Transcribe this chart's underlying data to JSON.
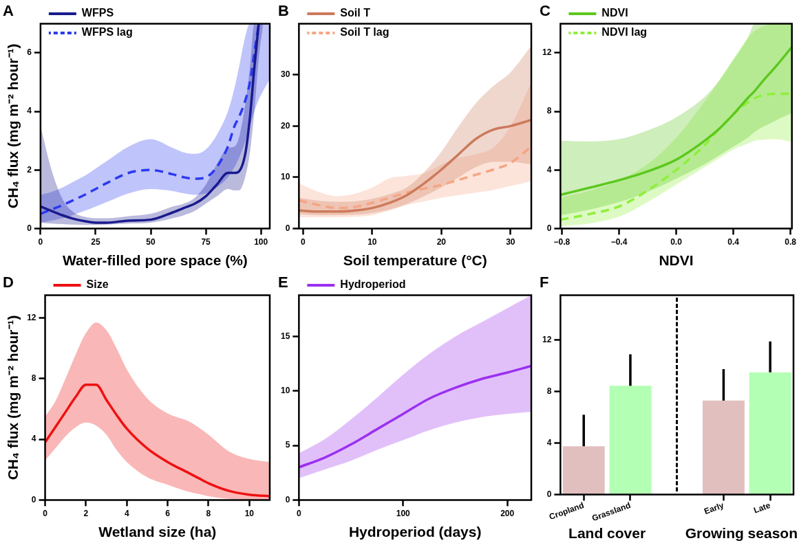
{
  "chart_data": [
    {
      "type": "line",
      "title": "A",
      "xlabel": "Water-filled pore space (%)",
      "ylabel": "CH₄ flux (mg m⁻² hour⁻¹)",
      "legend": "top left",
      "marker": "none",
      "xlim": [
        0,
        104
      ],
      "xticks": [
        0,
        25,
        50,
        75,
        100
      ],
      "ylim": [
        0,
        7
      ],
      "yticks": [
        0,
        2,
        4,
        6
      ],
      "x": [
        0,
        5,
        10,
        15,
        20,
        25,
        30,
        40,
        50,
        60,
        65,
        70,
        75,
        80,
        85,
        88,
        90,
        93,
        95,
        97,
        99,
        101,
        104
      ],
      "series": [
        {
          "name": "WFPS",
          "color": "#1a1a8f",
          "line_style": "solid",
          "values": [
            0.75,
            0.6,
            0.45,
            0.33,
            0.25,
            0.2,
            0.2,
            0.27,
            0.3,
            0.55,
            0.7,
            0.85,
            1.1,
            1.5,
            1.9,
            1.9,
            1.95,
            2.6,
            3.8,
            5.5,
            7.0,
            null,
            null
          ],
          "upper": [
            3.5,
            2.0,
            1.0,
            0.55,
            0.4,
            0.35,
            0.35,
            0.42,
            0.5,
            0.75,
            0.85,
            1.05,
            1.5,
            2.2,
            2.75,
            2.8,
            3.1,
            4.3,
            5.5,
            7.0,
            7.0,
            7.0,
            null
          ],
          "lower": [
            0.2,
            0.17,
            0.15,
            0.13,
            0.12,
            0.12,
            0.13,
            0.17,
            0.2,
            0.35,
            0.45,
            0.6,
            0.85,
            1.1,
            1.35,
            1.3,
            1.3,
            1.8,
            2.6,
            4.0,
            5.8,
            7.0,
            null
          ]
        },
        {
          "name": "WFPS lag",
          "color": "#2a3af0",
          "line_style": "dashed",
          "values": [
            0.5,
            0.65,
            0.8,
            0.97,
            1.15,
            1.35,
            1.55,
            1.9,
            2.0,
            1.85,
            1.75,
            1.7,
            1.75,
            2.1,
            2.8,
            3.5,
            3.8,
            4.4,
            5.0,
            6.0,
            7.0,
            null,
            null
          ],
          "upper": [
            1.15,
            1.25,
            1.4,
            1.6,
            1.8,
            2.05,
            2.3,
            2.8,
            3.05,
            2.75,
            2.6,
            2.55,
            2.7,
            3.2,
            4.0,
            4.8,
            5.5,
            6.6,
            7.0,
            7.0,
            7.0,
            7.0,
            7.0
          ],
          "lower": [
            0.2,
            0.27,
            0.35,
            0.47,
            0.6,
            0.75,
            0.9,
            1.2,
            1.35,
            1.28,
            1.2,
            1.15,
            1.2,
            1.4,
            1.75,
            2.1,
            2.4,
            3.0,
            3.5,
            4.0,
            4.4,
            4.7,
            5.1
          ]
        }
      ]
    },
    {
      "type": "line",
      "title": "B",
      "xlabel": "Soil temperature (°C)",
      "legend": "top left",
      "marker": "none",
      "xlim": [
        -0.6,
        33
      ],
      "xticks": [
        0,
        10,
        20,
        30
      ],
      "ylim": [
        0,
        40
      ],
      "yticks": [
        0,
        10,
        20,
        30
      ],
      "x": [
        -0.6,
        2.5,
        5,
        7.5,
        10,
        12.5,
        15,
        17.5,
        20,
        22.5,
        25,
        27.5,
        30,
        33
      ],
      "series": [
        {
          "name": "Soil T",
          "color": "#cc7a5c",
          "line_style": "solid",
          "values": [
            3.5,
            3.3,
            3.3,
            3.5,
            4.0,
            5.0,
            6.5,
            8.8,
            11.5,
            14.5,
            17.5,
            19.3,
            20.0,
            21.2
          ],
          "upper": [
            6.0,
            5.4,
            5.2,
            5.3,
            5.8,
            6.7,
            8.0,
            11.0,
            15.0,
            20.0,
            24.5,
            27.8,
            30.5,
            35.7
          ],
          "lower": [
            2.8,
            2.6,
            2.6,
            2.7,
            3.0,
            3.7,
            4.8,
            6.3,
            8.0,
            10.0,
            12.0,
            13.0,
            13.0,
            12.5
          ]
        },
        {
          "name": "Soil T lag",
          "color": "#f5a584",
          "line_style": "dashed",
          "values": [
            5.5,
            4.5,
            4.0,
            4.2,
            5.0,
            6.0,
            7.0,
            7.8,
            8.5,
            9.5,
            10.5,
            11.5,
            12.8,
            16.0
          ],
          "upper": [
            8.8,
            7.0,
            6.3,
            6.8,
            8.0,
            9.8,
            10.3,
            10.8,
            12.5,
            13.8,
            14.5,
            15.8,
            20.0,
            28.5
          ],
          "lower": [
            2.2,
            2.2,
            2.2,
            2.3,
            2.6,
            3.5,
            4.6,
            5.3,
            6.0,
            6.5,
            7.0,
            7.5,
            8.3,
            9.2
          ]
        }
      ]
    },
    {
      "type": "line",
      "title": "C",
      "xlabel": "NDVI",
      "legend": "top left",
      "marker": "none",
      "xlim": [
        -0.81,
        0.81
      ],
      "xticks": [
        {
          "value": -0.8,
          "label": "−0.8"
        },
        {
          "value": -0.4,
          "label": "−0.4"
        },
        {
          "value": 0,
          "label": "0.0"
        },
        {
          "value": 0.4,
          "label": "0.4"
        },
        {
          "value": 0.8,
          "label": "0.8"
        }
      ],
      "ylim": [
        0,
        14
      ],
      "yticks": [
        0,
        4,
        8,
        12
      ],
      "x": [
        -0.81,
        -0.6,
        -0.4,
        -0.2,
        0,
        0.2,
        0.3,
        0.4,
        0.5,
        0.55,
        0.6,
        0.7,
        0.81
      ],
      "series": [
        {
          "name": "NDVI",
          "color": "#5cc81e",
          "line_style": "solid",
          "values": [
            2.3,
            2.8,
            3.3,
            3.9,
            4.7,
            6.0,
            6.8,
            7.8,
            8.9,
            9.4,
            10.0,
            11.1,
            12.4
          ],
          "upper": [
            6.0,
            5.95,
            6.1,
            6.7,
            7.6,
            9.0,
            10.1,
            11.5,
            13.0,
            14.0,
            14.0,
            14.0,
            14.0
          ],
          "lower": [
            0.9,
            1.3,
            1.8,
            2.5,
            3.4,
            4.4,
            5.0,
            5.6,
            6.2,
            6.6,
            6.9,
            7.4,
            7.9
          ]
        },
        {
          "name": "NDVI lag",
          "color": "#8ef03a",
          "line_style": "dashed",
          "values": [
            0.6,
            1.0,
            1.5,
            2.6,
            4.0,
            5.7,
            6.8,
            7.8,
            8.6,
            8.9,
            9.1,
            9.2,
            9.2
          ],
          "upper": [
            2.1,
            2.6,
            3.3,
            4.4,
            6.2,
            8.7,
            10.1,
            11.6,
            13.0,
            13.5,
            13.8,
            14.0,
            14.0
          ],
          "lower": [
            0.15,
            0.35,
            0.8,
            1.8,
            3.0,
            4.2,
            4.8,
            5.4,
            5.8,
            6.0,
            6.05,
            6.1,
            5.9
          ]
        }
      ]
    },
    {
      "type": "line",
      "title": "D",
      "xlabel": "Wetland size (ha)",
      "ylabel": "CH₄ flux (mg m⁻² hour⁻¹)",
      "legend": "top left",
      "marker": "none",
      "xlim": [
        0,
        11
      ],
      "xticks": [
        0,
        2,
        4,
        6,
        8,
        10
      ],
      "ylim": [
        0,
        13.5
      ],
      "yticks": [
        0,
        4,
        8,
        12
      ],
      "x": [
        0,
        0.5,
        1,
        1.5,
        2,
        2.5,
        3,
        3.5,
        4,
        5,
        6,
        7,
        7.5,
        8,
        9,
        10,
        11
      ],
      "series": [
        {
          "name": "Size",
          "color": "#ee1111",
          "line_style": "solid",
          "values": [
            3.8,
            4.8,
            5.8,
            6.8,
            7.6,
            7.6,
            6.6,
            5.6,
            4.7,
            3.4,
            2.5,
            1.8,
            1.45,
            1.1,
            0.6,
            0.35,
            0.25
          ],
          "upper": [
            5.5,
            6.5,
            8.0,
            9.6,
            11.0,
            11.7,
            11.2,
            10.0,
            8.6,
            6.7,
            5.7,
            5.2,
            4.8,
            4.3,
            3.2,
            2.7,
            2.5
          ],
          "lower": [
            2.6,
            3.4,
            4.2,
            4.8,
            5.1,
            4.9,
            4.3,
            3.3,
            2.5,
            1.5,
            1.0,
            0.55,
            0.4,
            0.25,
            0.08,
            0.02,
            0.0
          ]
        }
      ]
    },
    {
      "type": "line",
      "title": "E",
      "xlabel": "Hydroperiod (days)",
      "legend": "top left",
      "marker": "none",
      "xlim": [
        0,
        223
      ],
      "xticks": [
        0,
        100,
        200
      ],
      "ylim": [
        0,
        18.8
      ],
      "yticks": [
        0,
        5,
        10,
        15
      ],
      "x": [
        0,
        25,
        50,
        75,
        100,
        125,
        150,
        175,
        200,
        223
      ],
      "series": [
        {
          "name": "Hydroperiod",
          "color": "#9b30f0",
          "line_style": "solid",
          "values": [
            3.0,
            3.9,
            5.1,
            6.5,
            7.9,
            9.3,
            10.3,
            11.1,
            11.7,
            12.3
          ],
          "upper": [
            4.3,
            5.6,
            7.4,
            9.4,
            11.5,
            13.4,
            15.0,
            16.3,
            17.6,
            18.8
          ],
          "lower": [
            2.0,
            2.8,
            3.6,
            4.6,
            5.5,
            6.4,
            7.1,
            7.6,
            7.9,
            8.1
          ]
        }
      ]
    },
    {
      "type": "bar",
      "title": "F",
      "categories": [
        "Cropland",
        "Grassland",
        null,
        "Early",
        "Late"
      ],
      "values": [
        3.75,
        8.45,
        null,
        7.3,
        9.5
      ],
      "colors": [
        "#e2bfbf",
        "#b3ffb3",
        null,
        "#e2bfbf",
        "#b3ffb3"
      ],
      "errors": [
        [
          3.75,
          6.2
        ],
        [
          8.45,
          10.9
        ],
        null,
        [
          7.3,
          9.75
        ],
        [
          9.5,
          11.9
        ]
      ],
      "ylim": [
        0,
        15.5
      ],
      "yticks": [
        0,
        4,
        8,
        12
      ],
      "annotations": [
        "Land cover",
        "Growing season"
      ]
    }
  ]
}
